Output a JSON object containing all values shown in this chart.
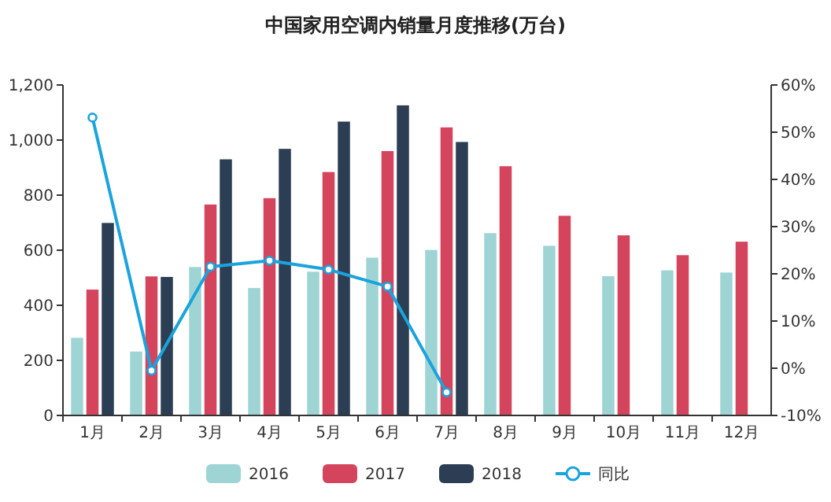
{
  "chart_data": {
    "type": "bar",
    "title": "中国家用空调内销量月度推移(万台)",
    "categories": [
      "1月",
      "2月",
      "3月",
      "4月",
      "5月",
      "6月",
      "7月",
      "8月",
      "9月",
      "10月",
      "11月",
      "12月"
    ],
    "series": [
      {
        "name": "2016",
        "color": "#9fd4d4",
        "values": [
          282,
          232,
          539,
          463,
          522,
          573,
          601,
          662,
          616,
          506,
          527,
          519
        ]
      },
      {
        "name": "2017",
        "color": "#d5445d",
        "values": [
          457,
          505,
          766,
          789,
          884,
          960,
          1046,
          905,
          725,
          654,
          582,
          631
        ]
      },
      {
        "name": "2018",
        "color": "#2b3e53",
        "values": [
          699,
          503,
          930,
          968,
          1067,
          1126,
          993,
          null,
          null,
          null,
          null,
          null
        ]
      },
      {
        "name": "同比",
        "type": "line",
        "axis": "y2",
        "color": "#1aa3dc",
        "marker": "circle",
        "values": [
          53.1,
          -0.5,
          21.5,
          22.8,
          20.9,
          17.3,
          -5.1,
          null,
          null,
          null,
          null,
          null
        ]
      }
    ],
    "ylim": [
      0,
      1200
    ],
    "yticks": [
      {
        "value": 0,
        "label": "0"
      },
      {
        "value": 200,
        "label": "200"
      },
      {
        "value": 400,
        "label": "400"
      },
      {
        "value": 600,
        "label": "600"
      },
      {
        "value": 800,
        "label": "800"
      },
      {
        "value": 1000,
        "label": "1,000"
      },
      {
        "value": 1200,
        "label": "1,200"
      }
    ],
    "y2lim": [
      -10,
      60
    ],
    "y2ticks": [
      {
        "value": -10,
        "label": "-10%"
      },
      {
        "value": 0,
        "label": "0%"
      },
      {
        "value": 10,
        "label": "10%"
      },
      {
        "value": 20,
        "label": "20%"
      },
      {
        "value": 30,
        "label": "30%"
      },
      {
        "value": 40,
        "label": "40%"
      },
      {
        "value": 50,
        "label": "50%"
      },
      {
        "value": 60,
        "label": "60%"
      }
    ],
    "grid": false,
    "legend": "bottom"
  }
}
